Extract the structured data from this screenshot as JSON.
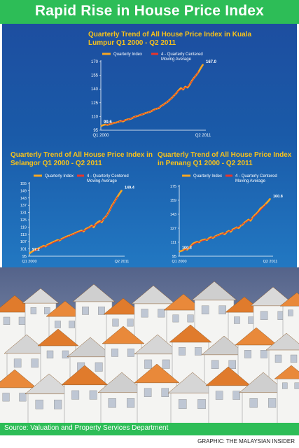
{
  "title": "Rapid Rise in House Price Index",
  "source": "Source:  Valuation and Property Services Department",
  "credit": "GRAPHIC: THE MALAYSIAN INSIDER",
  "colors": {
    "banner": "#2dbd57",
    "panel": "#1d4ea0",
    "title_text": "#f7c21b",
    "quarterly": "#f5a623",
    "moving_average": "#e8352b"
  },
  "chart_data": [
    {
      "type": "line",
      "title": "Quarterly Trend of All House Price Index in Kuala Lumpur Q1 2000 - Q2 2011",
      "x_start_label": "Q1 2000",
      "x_end_label": "Q2 2011",
      "yticks": [
        "95",
        "110",
        "125",
        "140",
        "155",
        "170"
      ],
      "ylim": [
        95,
        170
      ],
      "start_label": "99.6",
      "end_label": "167.0",
      "legend": [
        "Quarterly Index",
        "4 - Quarterly Centered Moving Average"
      ],
      "series": [
        {
          "name": "Quarterly Index",
          "values": [
            99.6,
            100.5,
            101.2,
            100.8,
            101.5,
            102.3,
            103.0,
            103.4,
            104.2,
            105.0,
            104.6,
            106.0,
            106.8,
            107.2,
            108.0,
            109.5,
            110.2,
            111.0,
            111.8,
            112.5,
            113.6,
            114.4,
            115.0,
            116.2,
            117.5,
            118.4,
            119.0,
            121.2,
            122.6,
            124.4,
            126.0,
            128.3,
            130.5,
            133.0,
            135.5,
            138.6,
            141.0,
            139.5,
            142.5,
            141.6,
            145.0,
            149.0,
            152.5,
            155.5,
            159.0,
            163.0,
            167.0
          ]
        },
        {
          "name": "4 - Quarterly Centered Moving Average",
          "values": [
            null,
            null,
            101.0,
            101.2,
            101.7,
            102.3,
            102.9,
            103.6,
            104.2,
            104.8,
            105.3,
            105.9,
            106.6,
            107.3,
            108.2,
            109.2,
            110.2,
            111.0,
            111.8,
            112.6,
            113.5,
            114.3,
            115.2,
            116.3,
            117.3,
            118.4,
            119.6,
            121.0,
            122.5,
            124.3,
            126.2,
            128.3,
            130.6,
            133.0,
            135.6,
            137.9,
            139.5,
            140.3,
            141.5,
            142.8,
            145.2,
            148.6,
            152.2,
            155.8,
            159.6,
            null,
            null
          ]
        }
      ]
    },
    {
      "type": "line",
      "title": "Quarterly Trend of All House Price Index in Selangor Q1 2000 - Q2 2011",
      "x_start_label": "Q1 2000",
      "x_end_label": "Q2 2011",
      "yticks": [
        "95",
        "101",
        "107",
        "113",
        "119",
        "125",
        "131",
        "137",
        "143",
        "149",
        "155"
      ],
      "ylim": [
        95,
        155
      ],
      "start_label": "97.2",
      "end_label": "149.4",
      "legend": [
        "Quarterly Index",
        "4 - Quarterly Centered Moving Average"
      ],
      "series": [
        {
          "name": "Quarterly Index",
          "values": [
            97.2,
            98.5,
            99.4,
            100.3,
            101.0,
            101.8,
            102.5,
            103.6,
            103.0,
            104.4,
            105.2,
            106.0,
            106.8,
            107.5,
            108.3,
            108.0,
            109.2,
            110.0,
            110.8,
            111.5,
            112.0,
            112.8,
            113.4,
            114.2,
            115.0,
            115.6,
            116.2,
            115.5,
            117.4,
            118.2,
            119.0,
            120.3,
            118.8,
            121.5,
            123.0,
            124.0,
            123.0,
            126.0,
            127.5,
            130.0,
            133.0,
            136.5,
            139.0,
            141.8,
            144.5,
            147.0,
            149.4
          ]
        },
        {
          "name": "4 - Quarterly Centered Moving Average",
          "values": [
            null,
            null,
            98.9,
            99.8,
            100.6,
            101.4,
            102.1,
            102.8,
            103.3,
            103.8,
            104.6,
            105.4,
            106.3,
            107.0,
            107.6,
            108.3,
            108.8,
            109.5,
            110.3,
            111.0,
            111.7,
            112.4,
            113.1,
            113.8,
            114.5,
            115.2,
            115.5,
            116.0,
            116.6,
            117.6,
            118.8,
            119.5,
            120.1,
            120.9,
            122.0,
            122.8,
            123.9,
            125.5,
            127.4,
            129.9,
            132.8,
            135.9,
            138.9,
            141.6,
            144.0,
            null,
            null
          ]
        }
      ]
    },
    {
      "type": "line",
      "title": "Quarterly Trend of All House Price Index in Penang Q1 2000 - Q2 2011",
      "x_start_label": "Q1 2000",
      "x_end_label": "Q2 2011",
      "yticks": [
        "95",
        "111",
        "127",
        "143",
        "159",
        "175"
      ],
      "ylim": [
        95,
        175
      ],
      "start_label": "100.3",
      "end_label": "160.8",
      "legend": [
        "Quarterly Index",
        "4 - Quarterly Centered Moving Average"
      ],
      "series": [
        {
          "name": "Quarterly Index",
          "values": [
            100.3,
            101.0,
            101.8,
            103.5,
            102.5,
            104.8,
            107.0,
            109.5,
            110.5,
            111.5,
            111.0,
            112.8,
            113.5,
            114.2,
            113.6,
            115.5,
            116.8,
            116.0,
            117.5,
            118.6,
            119.4,
            120.5,
            121.2,
            120.2,
            122.5,
            124.0,
            123.0,
            125.5,
            126.6,
            128.0,
            127.2,
            129.8,
            131.0,
            133.5,
            135.0,
            136.8,
            135.6,
            139.0,
            141.5,
            143.5,
            146.0,
            149.5,
            151.0,
            153.0,
            155.5,
            158.0,
            160.8
          ]
        },
        {
          "name": "4 - Quarterly Centered Moving Average",
          "values": [
            null,
            null,
            101.6,
            102.3,
            103.4,
            104.9,
            106.6,
            108.2,
            109.7,
            110.6,
            111.4,
            112.1,
            112.9,
            113.5,
            114.1,
            114.8,
            115.6,
            116.6,
            117.4,
            118.2,
            119.2,
            120.1,
            120.7,
            121.4,
            122.3,
            123.2,
            124.2,
            125.1,
            126.2,
            127.4,
            128.6,
            129.9,
            131.5,
            133.1,
            134.6,
            135.8,
            137.0,
            138.5,
            140.6,
            142.7,
            145.0,
            147.5,
            149.9,
            152.1,
            154.5,
            null,
            null
          ]
        }
      ]
    }
  ]
}
